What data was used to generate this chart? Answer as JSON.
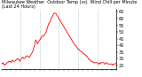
{
  "title": "Milwaukee Weather  Outdoor Temp (vs)  Wind Chill per Minute (Last 24 Hours)",
  "line_color": "#ff0000",
  "background_color": "#ffffff",
  "grid_color": "#888888",
  "y_ticks": [
    25,
    30,
    35,
    40,
    45,
    50,
    55,
    60,
    65
  ],
  "ylim": [
    22,
    67
  ],
  "xlim": [
    0,
    144
  ],
  "x_values": [
    0,
    1,
    2,
    3,
    4,
    5,
    6,
    7,
    8,
    9,
    10,
    11,
    12,
    13,
    14,
    15,
    16,
    17,
    18,
    19,
    20,
    21,
    22,
    23,
    24,
    25,
    26,
    27,
    28,
    29,
    30,
    31,
    32,
    33,
    34,
    35,
    36,
    37,
    38,
    39,
    40,
    41,
    42,
    43,
    44,
    45,
    46,
    47,
    48,
    49,
    50,
    51,
    52,
    53,
    54,
    55,
    56,
    57,
    58,
    59,
    60,
    61,
    62,
    63,
    64,
    65,
    66,
    67,
    68,
    69,
    70,
    71,
    72,
    73,
    74,
    75,
    76,
    77,
    78,
    79,
    80,
    81,
    82,
    83,
    84,
    85,
    86,
    87,
    88,
    89,
    90,
    91,
    92,
    93,
    94,
    95,
    96,
    97,
    98,
    99,
    100,
    101,
    102,
    103,
    104,
    105,
    106,
    107,
    108,
    109,
    110,
    111,
    112,
    113,
    114,
    115,
    116,
    117,
    118,
    119,
    120,
    121,
    122,
    123,
    124,
    125,
    126,
    127,
    128,
    129,
    130,
    131,
    132,
    133,
    134,
    135,
    136,
    137,
    138,
    139,
    140,
    141,
    142,
    143,
    144
  ],
  "y_values": [
    27,
    26,
    27,
    26,
    25,
    26,
    26,
    27,
    27,
    28,
    28,
    28,
    27,
    28,
    29,
    28,
    28,
    28,
    29,
    29,
    30,
    30,
    29,
    28,
    29,
    30,
    31,
    31,
    30,
    30,
    31,
    32,
    32,
    32,
    31,
    31,
    32,
    33,
    34,
    35,
    37,
    39,
    42,
    44,
    43,
    41,
    42,
    43,
    44,
    45,
    46,
    47,
    47,
    47,
    48,
    49,
    50,
    52,
    54,
    56,
    57,
    58,
    60,
    61,
    62,
    63,
    64,
    64,
    64,
    63,
    62,
    61,
    60,
    59,
    58,
    57,
    56,
    55,
    54,
    53,
    52,
    51,
    50,
    49,
    48,
    47,
    46,
    45,
    44,
    43,
    42,
    41,
    40,
    40,
    39,
    38,
    37,
    37,
    36,
    36,
    35,
    35,
    34,
    34,
    33,
    33,
    32,
    32,
    31,
    30,
    29,
    29,
    28,
    28,
    28,
    27,
    27,
    27,
    27,
    27,
    27,
    26,
    26,
    27,
    26,
    27,
    27,
    27,
    27,
    26,
    26,
    27,
    27,
    26,
    26,
    26,
    26,
    26,
    26,
    25,
    26,
    26,
    26,
    26,
    27
  ],
  "grid_positions": [
    24,
    48,
    72,
    96,
    120
  ],
  "x_tick_step": 6,
  "title_fontsize": 3.5,
  "ytick_fontsize": 3.5,
  "xtick_fontsize": 3.0,
  "linewidth": 0.6
}
